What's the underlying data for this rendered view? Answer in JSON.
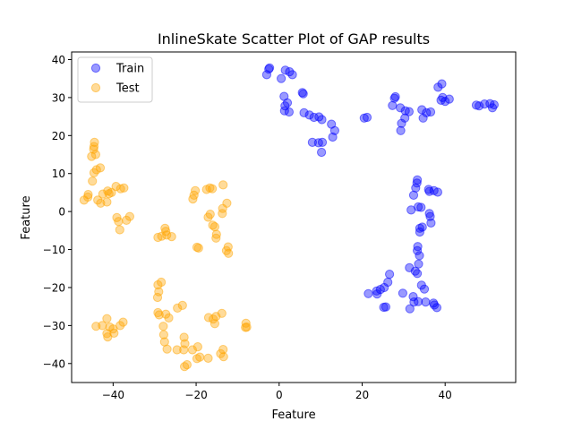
{
  "chart_data": {
    "type": "scatter",
    "title": "InlineSkate Scatter Plot of GAP results",
    "xlabel": "Feature",
    "ylabel": "Feature",
    "xlim": [
      -50,
      57
    ],
    "ylim": [
      -45,
      42
    ],
    "xticks": [
      -40,
      -20,
      0,
      20,
      40
    ],
    "yticks": [
      -40,
      -30,
      -20,
      -10,
      0,
      10,
      20,
      30,
      40
    ],
    "legend": {
      "placement": "top-left"
    },
    "grid": false,
    "series": [
      {
        "name": "Train",
        "color": "#0000ff",
        "points": [
          [
            -3,
            36
          ],
          [
            -2.5,
            37.5
          ],
          [
            -2.3,
            37.8
          ],
          [
            0.5,
            35
          ],
          [
            1.5,
            37.2
          ],
          [
            2.5,
            36.8
          ],
          [
            3.2,
            36
          ],
          [
            1.2,
            30.3
          ],
          [
            1.4,
            27.8
          ],
          [
            2,
            28.6
          ],
          [
            1.3,
            26.5
          ],
          [
            2.4,
            26.2
          ],
          [
            5.6,
            31.3
          ],
          [
            5.8,
            31
          ],
          [
            6,
            26
          ],
          [
            7.3,
            25.4
          ],
          [
            8.4,
            24.8
          ],
          [
            9.6,
            24.9
          ],
          [
            10.3,
            24.2
          ],
          [
            8,
            18.2
          ],
          [
            9.5,
            18.1
          ],
          [
            10.4,
            18.2
          ],
          [
            10.2,
            15.6
          ],
          [
            12.6,
            23
          ],
          [
            13.4,
            21.3
          ],
          [
            12.9,
            19.6
          ],
          [
            20.5,
            24.6
          ],
          [
            21.2,
            24.8
          ],
          [
            27.3,
            27.9
          ],
          [
            27.8,
            29.8
          ],
          [
            28,
            30.2
          ],
          [
            29.2,
            27.3
          ],
          [
            30.4,
            26.5
          ],
          [
            31.3,
            26.3
          ],
          [
            29.5,
            23.2
          ],
          [
            29.3,
            21.3
          ],
          [
            30.3,
            24.6
          ],
          [
            34.4,
            26.8
          ],
          [
            34.7,
            24.6
          ],
          [
            35.5,
            26
          ],
          [
            36.5,
            26.2
          ],
          [
            38.3,
            32.7
          ],
          [
            39.2,
            33.6
          ],
          [
            39.4,
            30
          ],
          [
            40,
            29
          ],
          [
            39,
            29.3
          ],
          [
            41,
            29.6
          ],
          [
            47.5,
            28
          ],
          [
            48.2,
            27.8
          ],
          [
            49.5,
            28.3
          ],
          [
            50.8,
            28.4
          ],
          [
            51.8,
            28.1
          ],
          [
            51.4,
            27.3
          ],
          [
            31.8,
            0.4
          ],
          [
            32.4,
            4.3
          ],
          [
            32.9,
            6.2
          ],
          [
            33.2,
            7.5
          ],
          [
            33.3,
            8.3
          ],
          [
            33.5,
            1.2
          ],
          [
            34.2,
            1.1
          ],
          [
            36,
            5.8
          ],
          [
            36.2,
            5.3
          ],
          [
            37.3,
            5.5
          ],
          [
            38.2,
            5.1
          ],
          [
            36.2,
            -0.5
          ],
          [
            36.4,
            -1.3
          ],
          [
            36.6,
            -3
          ],
          [
            34.5,
            -4.1
          ],
          [
            33.9,
            -4.4
          ],
          [
            33.9,
            -5.4
          ],
          [
            33.4,
            -9.2
          ],
          [
            33.3,
            -10.3
          ],
          [
            33.8,
            -11.6
          ],
          [
            33.6,
            -13.8
          ],
          [
            32.8,
            -15.7
          ],
          [
            33.3,
            -16.3
          ],
          [
            31.4,
            -14.8
          ],
          [
            34.3,
            -19.4
          ],
          [
            35,
            -20.4
          ],
          [
            32.3,
            -22.4
          ],
          [
            32.5,
            -23.8
          ],
          [
            33.5,
            -23.7
          ],
          [
            35.3,
            -23.8
          ],
          [
            37.2,
            -24.1
          ],
          [
            37.4,
            -24.6
          ],
          [
            38,
            -25.3
          ],
          [
            29.8,
            -21.5
          ],
          [
            31.5,
            -25.6
          ],
          [
            26.6,
            -16.5
          ],
          [
            26.2,
            -18.6
          ],
          [
            25.3,
            -20
          ],
          [
            24.4,
            -20.5
          ],
          [
            23.5,
            -20.9
          ],
          [
            23.6,
            -21.7
          ],
          [
            21.5,
            -21.6
          ],
          [
            25.2,
            -25.2
          ],
          [
            25.7,
            -25.1
          ]
        ]
      },
      {
        "name": "Test",
        "color": "#ffa500",
        "points": [
          [
            -44.7,
            16.4
          ],
          [
            -44.5,
            18.2
          ],
          [
            -44.6,
            17.1
          ],
          [
            -44.2,
            15
          ],
          [
            -45.2,
            14.5
          ],
          [
            -44,
            11
          ],
          [
            -44.6,
            10.2
          ],
          [
            -43.1,
            11.5
          ],
          [
            -45,
            8
          ],
          [
            -43.7,
            3
          ],
          [
            -43,
            2.2
          ],
          [
            -47,
            3
          ],
          [
            -46,
            4.5
          ],
          [
            -46.1,
            3.8
          ],
          [
            -42.5,
            4.6
          ],
          [
            -41.5,
            2.5
          ],
          [
            -40.4,
            5
          ],
          [
            -41.3,
            5.4
          ],
          [
            -39.3,
            6.6
          ],
          [
            -38.2,
            6
          ],
          [
            -37.4,
            6.2
          ],
          [
            -39.1,
            -1.6
          ],
          [
            -38.7,
            -2.6
          ],
          [
            -38.4,
            -4.8
          ],
          [
            -36.8,
            -2.3
          ],
          [
            -36,
            -1.3
          ],
          [
            -41,
            4.7
          ],
          [
            -27.5,
            -4.4
          ],
          [
            -27.3,
            -5.2
          ],
          [
            -27.1,
            -6.2
          ],
          [
            -25.9,
            -6.6
          ],
          [
            -29.2,
            -6.8
          ],
          [
            -28.3,
            -6.5
          ],
          [
            -20.5,
            4.3
          ],
          [
            -20.2,
            5.5
          ],
          [
            -20.8,
            3.3
          ],
          [
            -17.5,
            5.8
          ],
          [
            -16.7,
            6.2
          ],
          [
            -16.1,
            6
          ],
          [
            -13.5,
            7
          ],
          [
            -12.6,
            2.2
          ],
          [
            -13.6,
            0.8
          ],
          [
            -13.7,
            -0.5
          ],
          [
            -17.1,
            -1.5
          ],
          [
            -16.6,
            -0.7
          ],
          [
            -16,
            -3.6
          ],
          [
            -15.5,
            -4
          ],
          [
            -15.1,
            -6
          ],
          [
            -15.2,
            -7
          ],
          [
            -19.8,
            -9.4
          ],
          [
            -19.4,
            -9.6
          ],
          [
            -12.3,
            -9.3
          ],
          [
            -12.7,
            -10.3
          ],
          [
            -12.2,
            -11
          ],
          [
            -29.2,
            -19.3
          ],
          [
            -28.4,
            -18.6
          ],
          [
            -29,
            -21.1
          ],
          [
            -29.3,
            -22.6
          ],
          [
            -29.2,
            -26.6
          ],
          [
            -28.9,
            -27.2
          ],
          [
            -27.3,
            -27
          ],
          [
            -26.6,
            -28
          ],
          [
            -27.9,
            -30.2
          ],
          [
            -27.8,
            -32.4
          ],
          [
            -27.6,
            -34.3
          ],
          [
            -27,
            -36.2
          ],
          [
            -24.5,
            -25.4
          ],
          [
            -23.3,
            -24.7
          ],
          [
            -22.9,
            -33.1
          ],
          [
            -22.7,
            -34.8
          ],
          [
            -24.6,
            -36.4
          ],
          [
            -23,
            -36.4
          ],
          [
            -20.9,
            -36.4
          ],
          [
            -19.6,
            -35.6
          ],
          [
            -19.8,
            -38.7
          ],
          [
            -19.1,
            -38.3
          ],
          [
            -22.8,
            -40.8
          ],
          [
            -22.2,
            -40.3
          ],
          [
            -17.1,
            -38.6
          ],
          [
            -17,
            -27.9
          ],
          [
            -15.9,
            -28.3
          ],
          [
            -15.5,
            -29.5
          ],
          [
            -13.8,
            -26.8
          ],
          [
            -15.2,
            -27.6
          ],
          [
            -14.1,
            -37.4
          ],
          [
            -13.5,
            -36.3
          ],
          [
            -13.4,
            -38.2
          ],
          [
            -8,
            -29.4
          ],
          [
            -8.1,
            -30.5
          ],
          [
            -7.8,
            -30.4
          ],
          [
            -44.1,
            -30.2
          ],
          [
            -42.6,
            -30
          ],
          [
            -41.5,
            -28.2
          ],
          [
            -41.5,
            -32.1
          ],
          [
            -41.3,
            -33
          ],
          [
            -40.8,
            -30.4
          ],
          [
            -40,
            -30.9
          ],
          [
            -39.8,
            -32
          ],
          [
            -38.3,
            -30
          ],
          [
            -37.6,
            -29.1
          ]
        ]
      }
    ]
  }
}
